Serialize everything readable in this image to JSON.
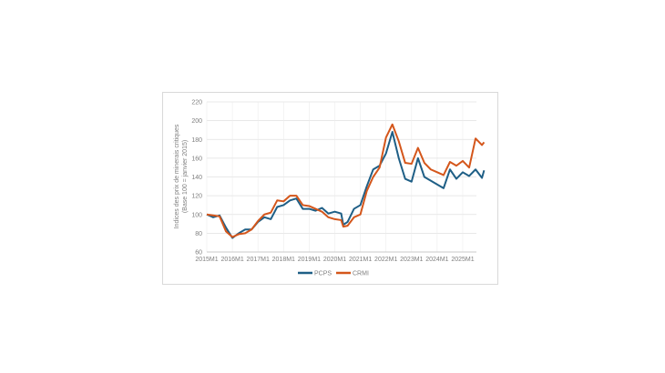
{
  "chart_data": {
    "type": "line",
    "title": "",
    "xlabel": "",
    "ylabel": "Indices des prix de minerais critiques (Base 100 = janvier 2015)",
    "ylabel_lines": [
      "Indices des prix de minerais critiques",
      "(Base 100 = janvier 2015)"
    ],
    "ylim": [
      60,
      220
    ],
    "yticks": [
      60,
      80,
      100,
      120,
      140,
      160,
      180,
      200,
      220
    ],
    "xtick_labels": [
      "2015M1",
      "2016M1",
      "2017M1",
      "2018M1",
      "2019M1",
      "2020M1",
      "2021M1",
      "2022M1",
      "2023M1",
      "2024M1",
      "2025M1"
    ],
    "x_months_from_2015M1": [
      0,
      3,
      6,
      9,
      12,
      15,
      18,
      21,
      24,
      27,
      30,
      33,
      36,
      39,
      42,
      45,
      48,
      51,
      54,
      57,
      60,
      63,
      64,
      66,
      69,
      72,
      75,
      78,
      81,
      84,
      87,
      90,
      93,
      96,
      99,
      102,
      105,
      108,
      111,
      114,
      117,
      120,
      123,
      126,
      129,
      130
    ],
    "grid": "horizontal",
    "legend": "bottom",
    "series": [
      {
        "name": "PCPS",
        "color": "#1f5f86",
        "values": [
          100,
          97,
          99,
          86,
          75,
          80,
          84,
          84,
          92,
          97,
          95,
          108,
          110,
          115,
          117,
          106,
          106,
          104,
          107,
          101,
          103,
          101,
          89,
          92,
          106,
          110,
          130,
          148,
          152,
          165,
          188,
          160,
          138,
          135,
          160,
          140,
          136,
          132,
          128,
          148,
          138,
          145,
          141,
          148,
          139,
          147
        ]
      },
      {
        "name": "CRMI",
        "color": "#d4561b",
        "values": [
          100,
          99,
          98,
          82,
          76,
          79,
          80,
          84,
          93,
          100,
          102,
          115,
          114,
          120,
          120,
          110,
          109,
          106,
          103,
          97,
          95,
          94,
          87,
          88,
          97,
          100,
          125,
          140,
          150,
          182,
          196,
          178,
          155,
          154,
          171,
          155,
          148,
          145,
          142,
          156,
          152,
          157,
          150,
          181,
          174,
          177
        ]
      }
    ]
  }
}
